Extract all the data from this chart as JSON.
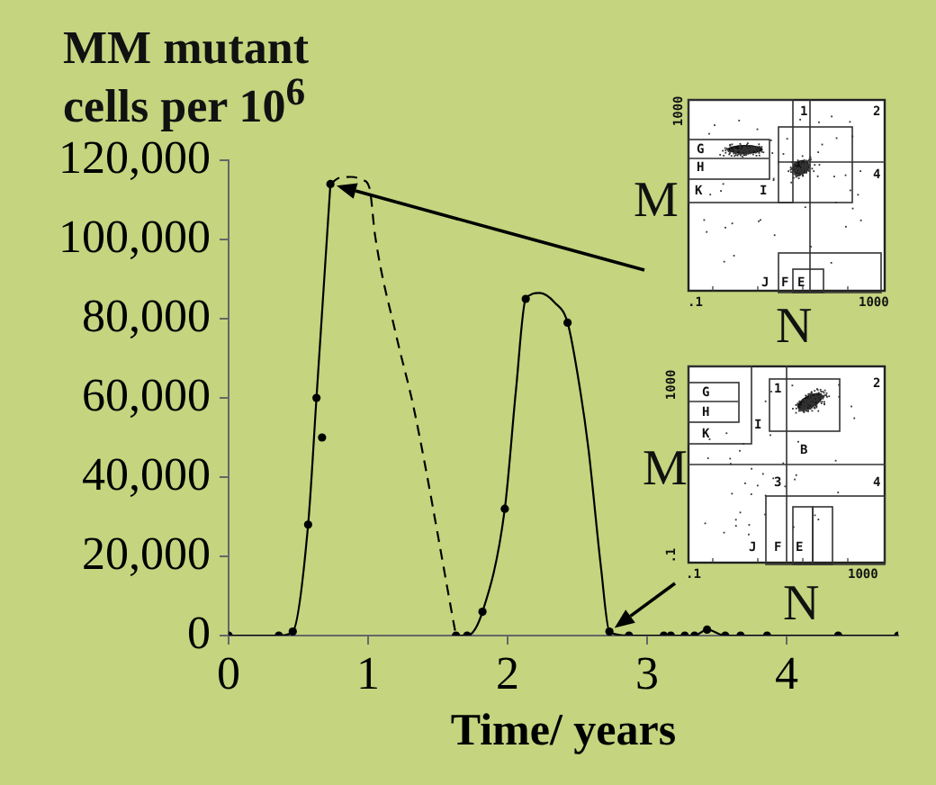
{
  "chart_data": {
    "type": "scatter",
    "xlabel": "Time/ years",
    "ylabel": "MM mutant cells per 10$^{6}$",
    "xlim": [
      0,
      4.8
    ],
    "xticks": [
      0,
      1,
      2,
      3,
      4
    ],
    "ylim": [
      0,
      120000
    ],
    "yticks": [
      {
        "value": 0,
        "label": "0"
      },
      {
        "value": 20000,
        "label": "20,000"
      },
      {
        "value": 40000,
        "label": "40,000"
      },
      {
        "value": 60000,
        "label": "60,000"
      },
      {
        "value": 80000,
        "label": "80,000"
      },
      {
        "value": 100000,
        "label": "100,000"
      },
      {
        "value": 120000,
        "label": "120,000"
      }
    ],
    "series": [
      {
        "type": "scatter",
        "color": "#000000",
        "marker": "circle",
        "x": [
          0,
          0.36,
          0.46,
          0.57,
          0.63,
          0.67,
          0.73,
          1.63,
          1.71,
          1.82,
          1.98,
          2.13,
          2.43,
          2.73,
          2.87,
          3.12,
          3.17,
          3.27,
          3.34,
          3.43,
          3.56,
          3.67,
          3.86,
          4.37,
          4.8
        ],
        "values": [
          0,
          0,
          1000,
          28000,
          60000,
          50000,
          114000,
          0,
          0,
          6000,
          32000,
          85000,
          79000,
          1000,
          0,
          0,
          0,
          0,
          0,
          1500,
          0,
          0,
          0,
          0,
          0
        ]
      },
      {
        "type": "line",
        "color": "#000000",
        "marker": "none",
        "line_style": "solid",
        "x": [
          0,
          0.36,
          0.46,
          0.57,
          0.63,
          0.73
        ],
        "values": [
          0,
          0,
          1000,
          28000,
          60000,
          114000
        ]
      },
      {
        "type": "line",
        "color": "#000000",
        "marker": "none",
        "line_style": "dashed",
        "x": [
          0.73,
          0.79,
          0.88,
          0.96,
          1.01,
          1.05,
          1.2,
          1.33,
          1.63
        ],
        "values": [
          114000,
          115500,
          115800,
          115000,
          113000,
          101000,
          76000,
          57000,
          0
        ]
      },
      {
        "type": "line",
        "color": "#000000",
        "marker": "none",
        "line_style": "solid",
        "x": [
          1.63,
          1.71,
          1.82,
          1.98,
          2.06,
          2.13,
          2.23,
          2.34,
          2.43,
          2.52,
          2.58,
          2.67,
          2.73,
          2.87,
          3.12,
          3.34,
          3.43,
          3.56,
          3.86,
          4.37,
          4.8
        ],
        "values": [
          0,
          0,
          6000,
          32000,
          62000,
          85000,
          86500,
          84000,
          79000,
          62000,
          47000,
          17000,
          1000,
          0,
          0,
          0,
          1500,
          0,
          0,
          0,
          0
        ]
      }
    ],
    "annotations": [
      "M",
      "N",
      ".1",
      "1000",
      "1000",
      "1",
      "2",
      "4",
      "G",
      "H",
      "K",
      "I",
      "J",
      "F",
      "E",
      "M",
      "N",
      ".1",
      "1000",
      "1000",
      ".1",
      "1",
      "2",
      "3",
      "4",
      "G",
      "H",
      "K",
      "I",
      "B",
      "J",
      "F",
      "E"
    ]
  }
}
